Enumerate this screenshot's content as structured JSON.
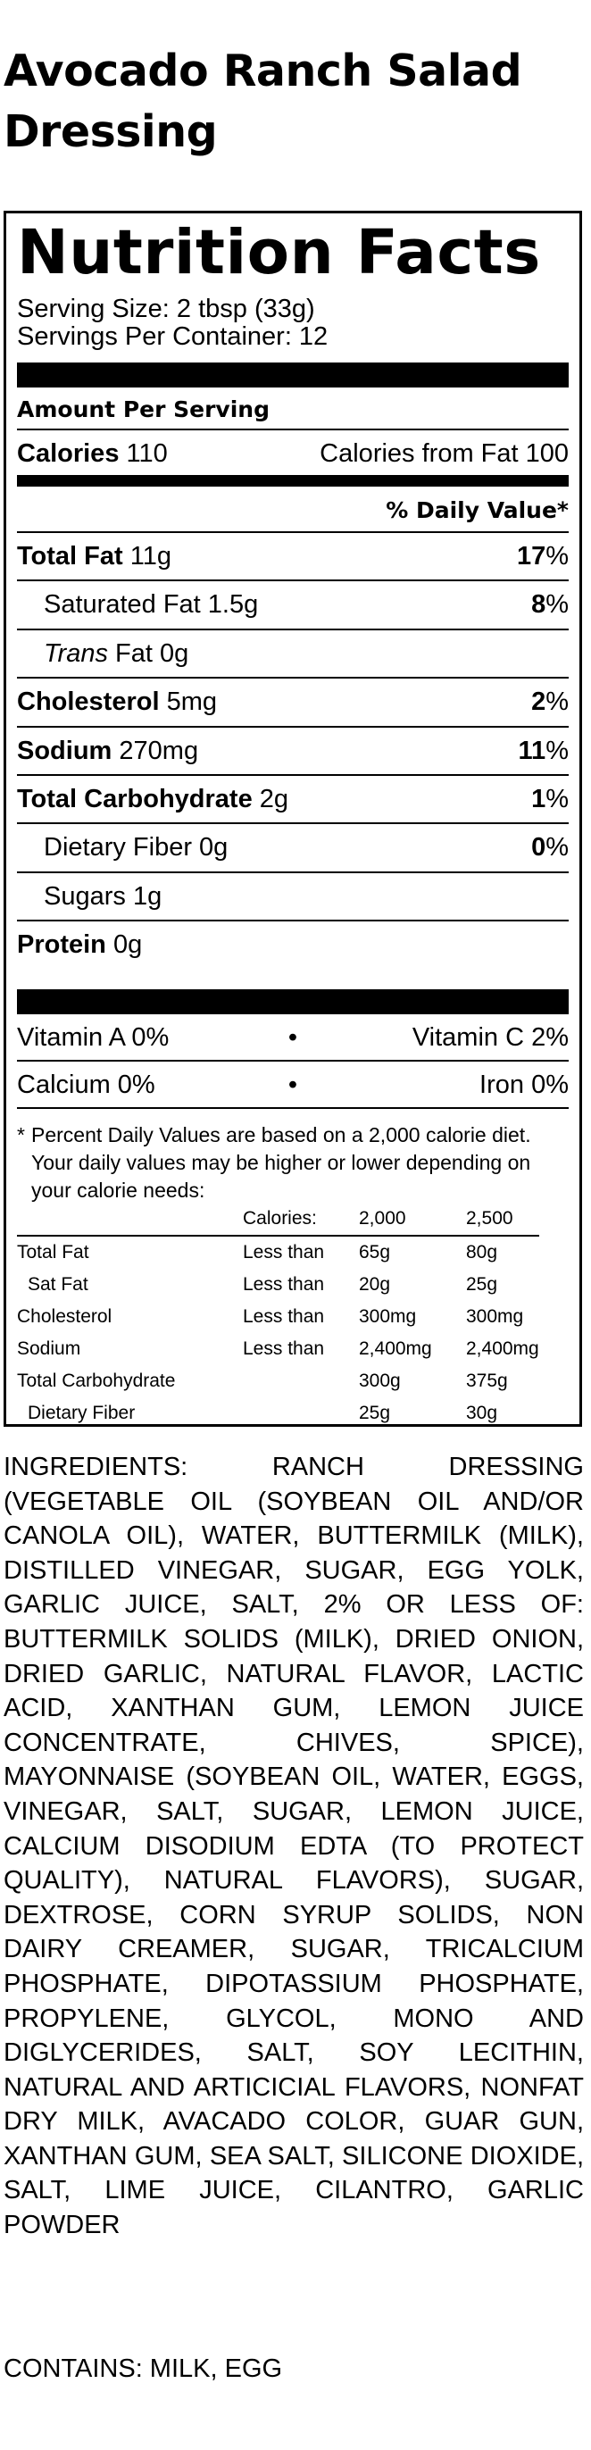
{
  "product": {
    "title": "Avocado Ranch Salad Dressing"
  },
  "nutrition": {
    "heading": "Nutrition Facts",
    "serving_size": "Serving Size: 2 tbsp (33g)",
    "servings_per_container": "Servings Per Container: 12",
    "amount_per_serving": "Amount Per Serving",
    "calories_label": "Calories",
    "calories_value": "110",
    "calories_from_fat": "Calories from Fat 100",
    "dv_header": "% Daily Value*",
    "rows": [
      {
        "name": "Total Fat",
        "amount": "11g",
        "dv": "17",
        "bold": true,
        "indent": false
      },
      {
        "name": "Saturated Fat",
        "amount": "1.5g",
        "dv": "8",
        "bold": false,
        "indent": true
      },
      {
        "name": "Trans",
        "name_rest": "Fat",
        "amount": "0g",
        "dv": "",
        "bold": false,
        "indent": true
      },
      {
        "name": "Cholesterol",
        "amount": "5mg",
        "dv": "2",
        "bold": true,
        "indent": false
      },
      {
        "name": "Sodium",
        "amount": "270mg",
        "dv": "11",
        "bold": true,
        "indent": false
      },
      {
        "name": "Total Carbohydrate",
        "amount": "2g",
        "dv": "1",
        "bold": true,
        "indent": false
      },
      {
        "name": "Dietary Fiber",
        "amount": "0g",
        "dv": "0",
        "bold": false,
        "indent": true
      },
      {
        "name": "Sugars",
        "amount": "1g",
        "dv": "",
        "bold": false,
        "indent": true
      },
      {
        "name": "Protein",
        "amount": "0g",
        "dv": "",
        "bold": true,
        "indent": false
      }
    ],
    "percent_sign": "%",
    "bullet": "•",
    "vitamins": [
      {
        "left": "Vitamin A 0%",
        "right": "Vitamin C 2%"
      },
      {
        "left": "Calcium 0%",
        "right": "Iron 0%"
      }
    ],
    "footnote_star": "*",
    "footnote": "Percent Daily Values are based on a 2,000 calorie diet. Your daily values may be higher or lower depending on your calorie needs:",
    "dv_table": {
      "header": [
        "",
        "Calories:",
        "2,000",
        "2,500"
      ],
      "rows": [
        [
          "Total Fat",
          "Less than",
          "65g",
          "80g"
        ],
        [
          "Sat Fat",
          "Less than",
          "20g",
          "25g"
        ],
        [
          "Cholesterol",
          "Less than",
          "300mg",
          "300mg"
        ],
        [
          "Sodium",
          "Less than",
          "2,400mg",
          "2,400mg"
        ],
        [
          "Total Carbohydrate",
          "",
          "300g",
          "375g"
        ],
        [
          "Dietary Fiber",
          "",
          "25g",
          "30g"
        ]
      ]
    }
  },
  "ingredients": "INGREDIENTS: RANCH DRESSING (VEGETABLE OIL (SOYBEAN OIL AND/OR CANOLA OIL), WATER, BUTTERMILK (MILK), DISTILLED VINEGAR, SUGAR, EGG YOLK, GARLIC JUICE, SALT, 2% OR LESS OF: BUTTERMILK SOLIDS (MILK), DRIED ONION, DRIED GARLIC, NATURAL FLAVOR, LACTIC ACID, XANTHAN GUM, LEMON JUICE CONCENTRATE, CHIVES, SPICE), MAYONNAISE (SOYBEAN OIL, WATER, EGGS, VINEGAR, SALT, SUGAR, LEMON JUICE, CALCIUM DISODIUM EDTA (TO PROTECT QUALITY), NATURAL FLAVORS), SUGAR, DEXTROSE, CORN SYRUP SOLIDS, NON DAIRY CREAMER, SUGAR, TRICALCIUM PHOSPHATE, DIPOTASSIUM PHOSPHATE, PROPYLENE, GLYCOL, MONO AND DIGLYCERIDES, SALT, SOY LECITHIN, NATURAL AND ARTICICIAL FLAVORS, NONFAT DRY MILK, AVACADO COLOR, GUAR GUN, XANTHAN GUM, SEA SALT, SILICONE DIOXIDE, SALT, LIME JUICE, CILANTRO, GARLIC POWDER",
  "contains": "CONTAINS: MILK, EGG"
}
